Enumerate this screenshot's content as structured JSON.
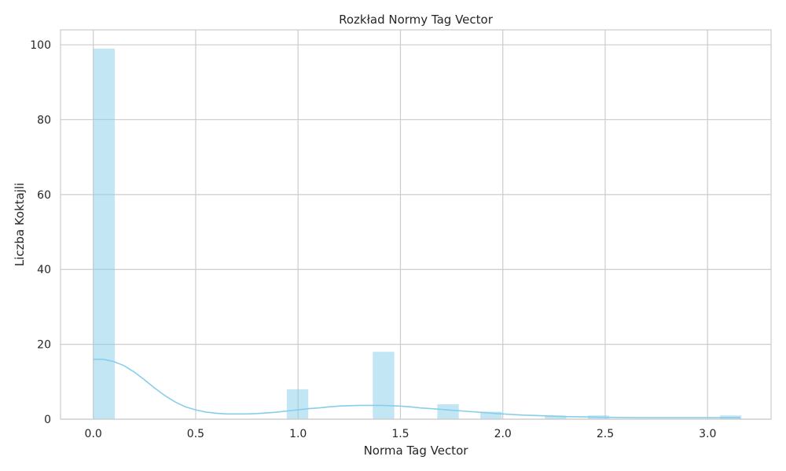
{
  "chart_data": {
    "type": "bar",
    "title": "Rozkład Normy Tag Vector",
    "xlabel": "Norma Tag Vector",
    "ylabel": "Liczba Koktajli",
    "xlim": [
      -0.16,
      3.31
    ],
    "ylim": [
      0,
      104
    ],
    "xticks": [
      "0.0",
      "0.5",
      "1.0",
      "1.5",
      "2.0",
      "2.5",
      "3.0"
    ],
    "xtick_values": [
      0,
      0.5,
      1.0,
      1.5,
      2.0,
      2.5,
      3.0
    ],
    "yticks": [
      "0",
      "20",
      "40",
      "60",
      "80",
      "100"
    ],
    "ytick_values": [
      0,
      20,
      40,
      60,
      80,
      100
    ],
    "grid": true,
    "bar_color": "#87ceeb",
    "kde_color": "#87ceeb",
    "bins": [
      {
        "x0": 0.0,
        "x1": 0.105,
        "count": 99
      },
      {
        "x0": 0.945,
        "x1": 1.05,
        "count": 8
      },
      {
        "x0": 1.365,
        "x1": 1.47,
        "count": 18
      },
      {
        "x0": 1.68,
        "x1": 1.785,
        "count": 4
      },
      {
        "x0": 1.89,
        "x1": 1.995,
        "count": 2
      },
      {
        "x0": 2.205,
        "x1": 2.31,
        "count": 1
      },
      {
        "x0": 2.415,
        "x1": 2.52,
        "count": 1
      },
      {
        "x0": 3.06,
        "x1": 3.165,
        "count": 1
      }
    ],
    "kde": {
      "x": [
        0.0,
        0.05,
        0.1,
        0.15,
        0.2,
        0.25,
        0.3,
        0.35,
        0.4,
        0.45,
        0.5,
        0.55,
        0.6,
        0.65,
        0.7,
        0.75,
        0.8,
        0.85,
        0.9,
        0.95,
        1.0,
        1.05,
        1.1,
        1.15,
        1.2,
        1.25,
        1.3,
        1.35,
        1.4,
        1.45,
        1.5,
        1.55,
        1.6,
        1.65,
        1.7,
        1.75,
        1.8,
        1.85,
        1.9,
        1.95,
        2.0,
        2.1,
        2.2,
        2.3,
        2.4,
        2.5,
        2.6,
        2.7,
        2.8,
        2.9,
        3.0,
        3.1,
        3.16
      ],
      "y": [
        16.0,
        16.0,
        15.4,
        14.3,
        12.6,
        10.5,
        8.3,
        6.3,
        4.6,
        3.3,
        2.5,
        1.9,
        1.6,
        1.4,
        1.4,
        1.4,
        1.5,
        1.7,
        1.9,
        2.2,
        2.5,
        2.8,
        3.0,
        3.3,
        3.5,
        3.6,
        3.7,
        3.7,
        3.7,
        3.6,
        3.5,
        3.3,
        3.0,
        2.8,
        2.6,
        2.4,
        2.2,
        2.0,
        1.8,
        1.6,
        1.4,
        1.1,
        0.9,
        0.7,
        0.6,
        0.5,
        0.45,
        0.4,
        0.4,
        0.4,
        0.4,
        0.4,
        0.4
      ]
    }
  }
}
